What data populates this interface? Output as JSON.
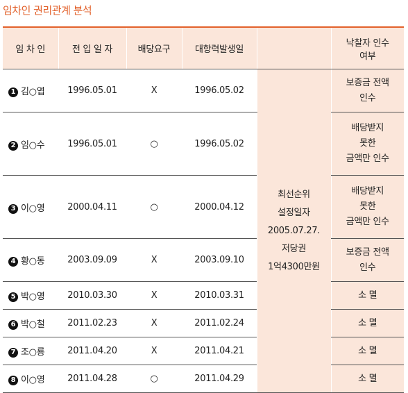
{
  "title": "임차인 권리관계 분석",
  "headers": [
    "임 차 인",
    "전 입 일 자",
    "배당요구",
    "대항력발생일",
    "",
    "낙찰자 인수 여부"
  ],
  "merged": [
    "최선순위",
    "설정일자",
    "2005.07.27.",
    "저당권",
    "1억4300만원"
  ],
  "rows": [
    {
      "no": "1",
      "name": "김○엽",
      "move_in": "1996.05.01",
      "claim": "X",
      "effective": "1996.05.02",
      "result": [
        "보증금 전액",
        "인수"
      ]
    },
    {
      "no": "2",
      "name": "임○수",
      "move_in": "1996.05.01",
      "claim": "○",
      "effective": "1996.05.02",
      "result": [
        "배당받지",
        "못한",
        "금액만 인수"
      ]
    },
    {
      "no": "3",
      "name": "이○영",
      "move_in": "2000.04.11",
      "claim": "○",
      "effective": "2000.04.12",
      "result": [
        "배당받지",
        "못한",
        "금액만 인수"
      ]
    },
    {
      "no": "4",
      "name": "황○동",
      "move_in": "2003.09.09",
      "claim": "X",
      "effective": "2003.09.10",
      "result": [
        "보증금 전액",
        "인수"
      ]
    },
    {
      "no": "5",
      "name": "박○영",
      "move_in": "2010.03.30",
      "claim": "X",
      "effective": "2010.03.31",
      "result": [
        "소 멸"
      ]
    },
    {
      "no": "6",
      "name": "박○철",
      "move_in": "2011.02.23",
      "claim": "X",
      "effective": "2011.02.24",
      "result": [
        "소 멸"
      ]
    },
    {
      "no": "7",
      "name": "조○룡",
      "move_in": "2011.04.20",
      "claim": "X",
      "effective": "2011.04.21",
      "result": [
        "소 멸"
      ]
    },
    {
      "no": "8",
      "name": "이○영",
      "move_in": "2011.04.28",
      "claim": "○",
      "effective": "2011.04.29",
      "result": [
        "소 멸"
      ]
    }
  ],
  "colors": {
    "accent": "#e2612b",
    "shade": "#fbe6da"
  }
}
